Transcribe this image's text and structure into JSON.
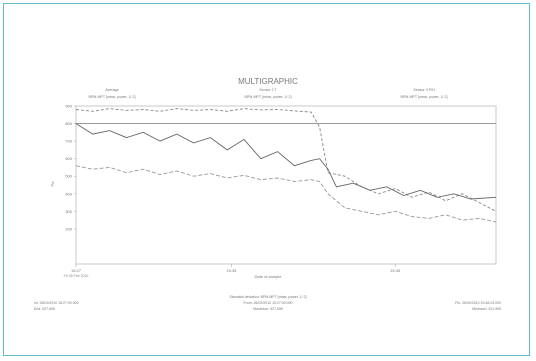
{
  "chart_data": {
    "type": "line",
    "title": "MULTIGRAPHIC",
    "subtitle": "",
    "xlabel": "Date of sample",
    "ylabel": "Pa",
    "ylim": [
      0,
      900
    ],
    "xlim": [
      0,
      100
    ],
    "grid": false,
    "threshold_line": 800,
    "x_ticks": [
      {
        "x": 0,
        "label": "15:27",
        "sublabel": "Fri 26 Feb 2010"
      },
      {
        "x": 37,
        "label": "15:35",
        "sublabel": ""
      },
      {
        "x": 76,
        "label": "15:45",
        "sublabel": ""
      }
    ],
    "y_ticks": [
      {
        "y": 200,
        "label": "200"
      },
      {
        "y": 300,
        "label": "300"
      },
      {
        "y": 400,
        "label": "400"
      },
      {
        "y": 500,
        "label": "500"
      },
      {
        "y": 600,
        "label": "600"
      },
      {
        "y": 700,
        "label": "700"
      },
      {
        "y": 800,
        "label": "800"
      },
      {
        "y": 900,
        "label": "900"
      }
    ],
    "legend_blocks": [
      {
        "heading": "Average",
        "label": "BPM-MPT [mbar, power, 1/ 2]"
      },
      {
        "heading": "Sensor 2 T",
        "label": "BPM-MPT [mbar, power, 1/ 2]"
      },
      {
        "heading": "Sensor 3 P/H",
        "label": "BPM-MPT [mbar, power, 1/ 2]"
      }
    ],
    "series": [
      {
        "color": "#888888",
        "dash": "3,2",
        "values": [
          [
            0,
            880
          ],
          [
            4,
            870
          ],
          [
            8,
            885
          ],
          [
            12,
            875
          ],
          [
            16,
            880
          ],
          [
            20,
            870
          ],
          [
            24,
            885
          ],
          [
            28,
            875
          ],
          [
            32,
            880
          ],
          [
            36,
            870
          ],
          [
            40,
            885
          ],
          [
            44,
            878
          ],
          [
            48,
            880
          ],
          [
            52,
            872
          ],
          [
            56,
            865
          ],
          [
            58,
            780
          ],
          [
            60,
            520
          ],
          [
            64,
            500
          ],
          [
            68,
            440
          ],
          [
            72,
            400
          ],
          [
            76,
            430
          ],
          [
            80,
            380
          ],
          [
            84,
            410
          ],
          [
            88,
            360
          ],
          [
            92,
            400
          ],
          [
            96,
            350
          ],
          [
            100,
            300
          ]
        ]
      },
      {
        "color": "#666666",
        "dash": "",
        "values": [
          [
            0,
            800
          ],
          [
            4,
            740
          ],
          [
            8,
            760
          ],
          [
            12,
            720
          ],
          [
            16,
            750
          ],
          [
            20,
            700
          ],
          [
            24,
            740
          ],
          [
            28,
            690
          ],
          [
            32,
            720
          ],
          [
            36,
            650
          ],
          [
            40,
            710
          ],
          [
            44,
            600
          ],
          [
            48,
            640
          ],
          [
            52,
            560
          ],
          [
            56,
            590
          ],
          [
            58,
            600
          ],
          [
            60,
            540
          ],
          [
            62,
            440
          ],
          [
            66,
            460
          ],
          [
            70,
            420
          ],
          [
            74,
            440
          ],
          [
            78,
            390
          ],
          [
            82,
            420
          ],
          [
            86,
            380
          ],
          [
            90,
            400
          ],
          [
            94,
            370
          ],
          [
            100,
            380
          ]
        ]
      },
      {
        "color": "#999999",
        "dash": "4,2",
        "values": [
          [
            0,
            560
          ],
          [
            4,
            540
          ],
          [
            8,
            550
          ],
          [
            12,
            520
          ],
          [
            16,
            540
          ],
          [
            20,
            510
          ],
          [
            24,
            530
          ],
          [
            28,
            500
          ],
          [
            32,
            515
          ],
          [
            36,
            490
          ],
          [
            40,
            505
          ],
          [
            44,
            480
          ],
          [
            48,
            490
          ],
          [
            52,
            470
          ],
          [
            56,
            480
          ],
          [
            58,
            470
          ],
          [
            60,
            400
          ],
          [
            64,
            320
          ],
          [
            68,
            300
          ],
          [
            72,
            280
          ],
          [
            76,
            300
          ],
          [
            80,
            270
          ],
          [
            84,
            260
          ],
          [
            88,
            280
          ],
          [
            92,
            250
          ],
          [
            96,
            260
          ],
          [
            100,
            240
          ]
        ]
      }
    ],
    "footer": {
      "center_line1": "Standard deviation: BPM-MPT [mbar, power, 1/ 2]",
      "center_line2": "From: 26/02/2010 15:27:00.000",
      "center_line3": "Maximum: 927.695",
      "left_line1": "Ini: 26/02/2010 15:27:00.000",
      "left_line2": "End: 927.695",
      "right_line1": "Fin: 26/02/2010 15:48:23.000",
      "right_line2": "Minimum: 201.905"
    }
  }
}
